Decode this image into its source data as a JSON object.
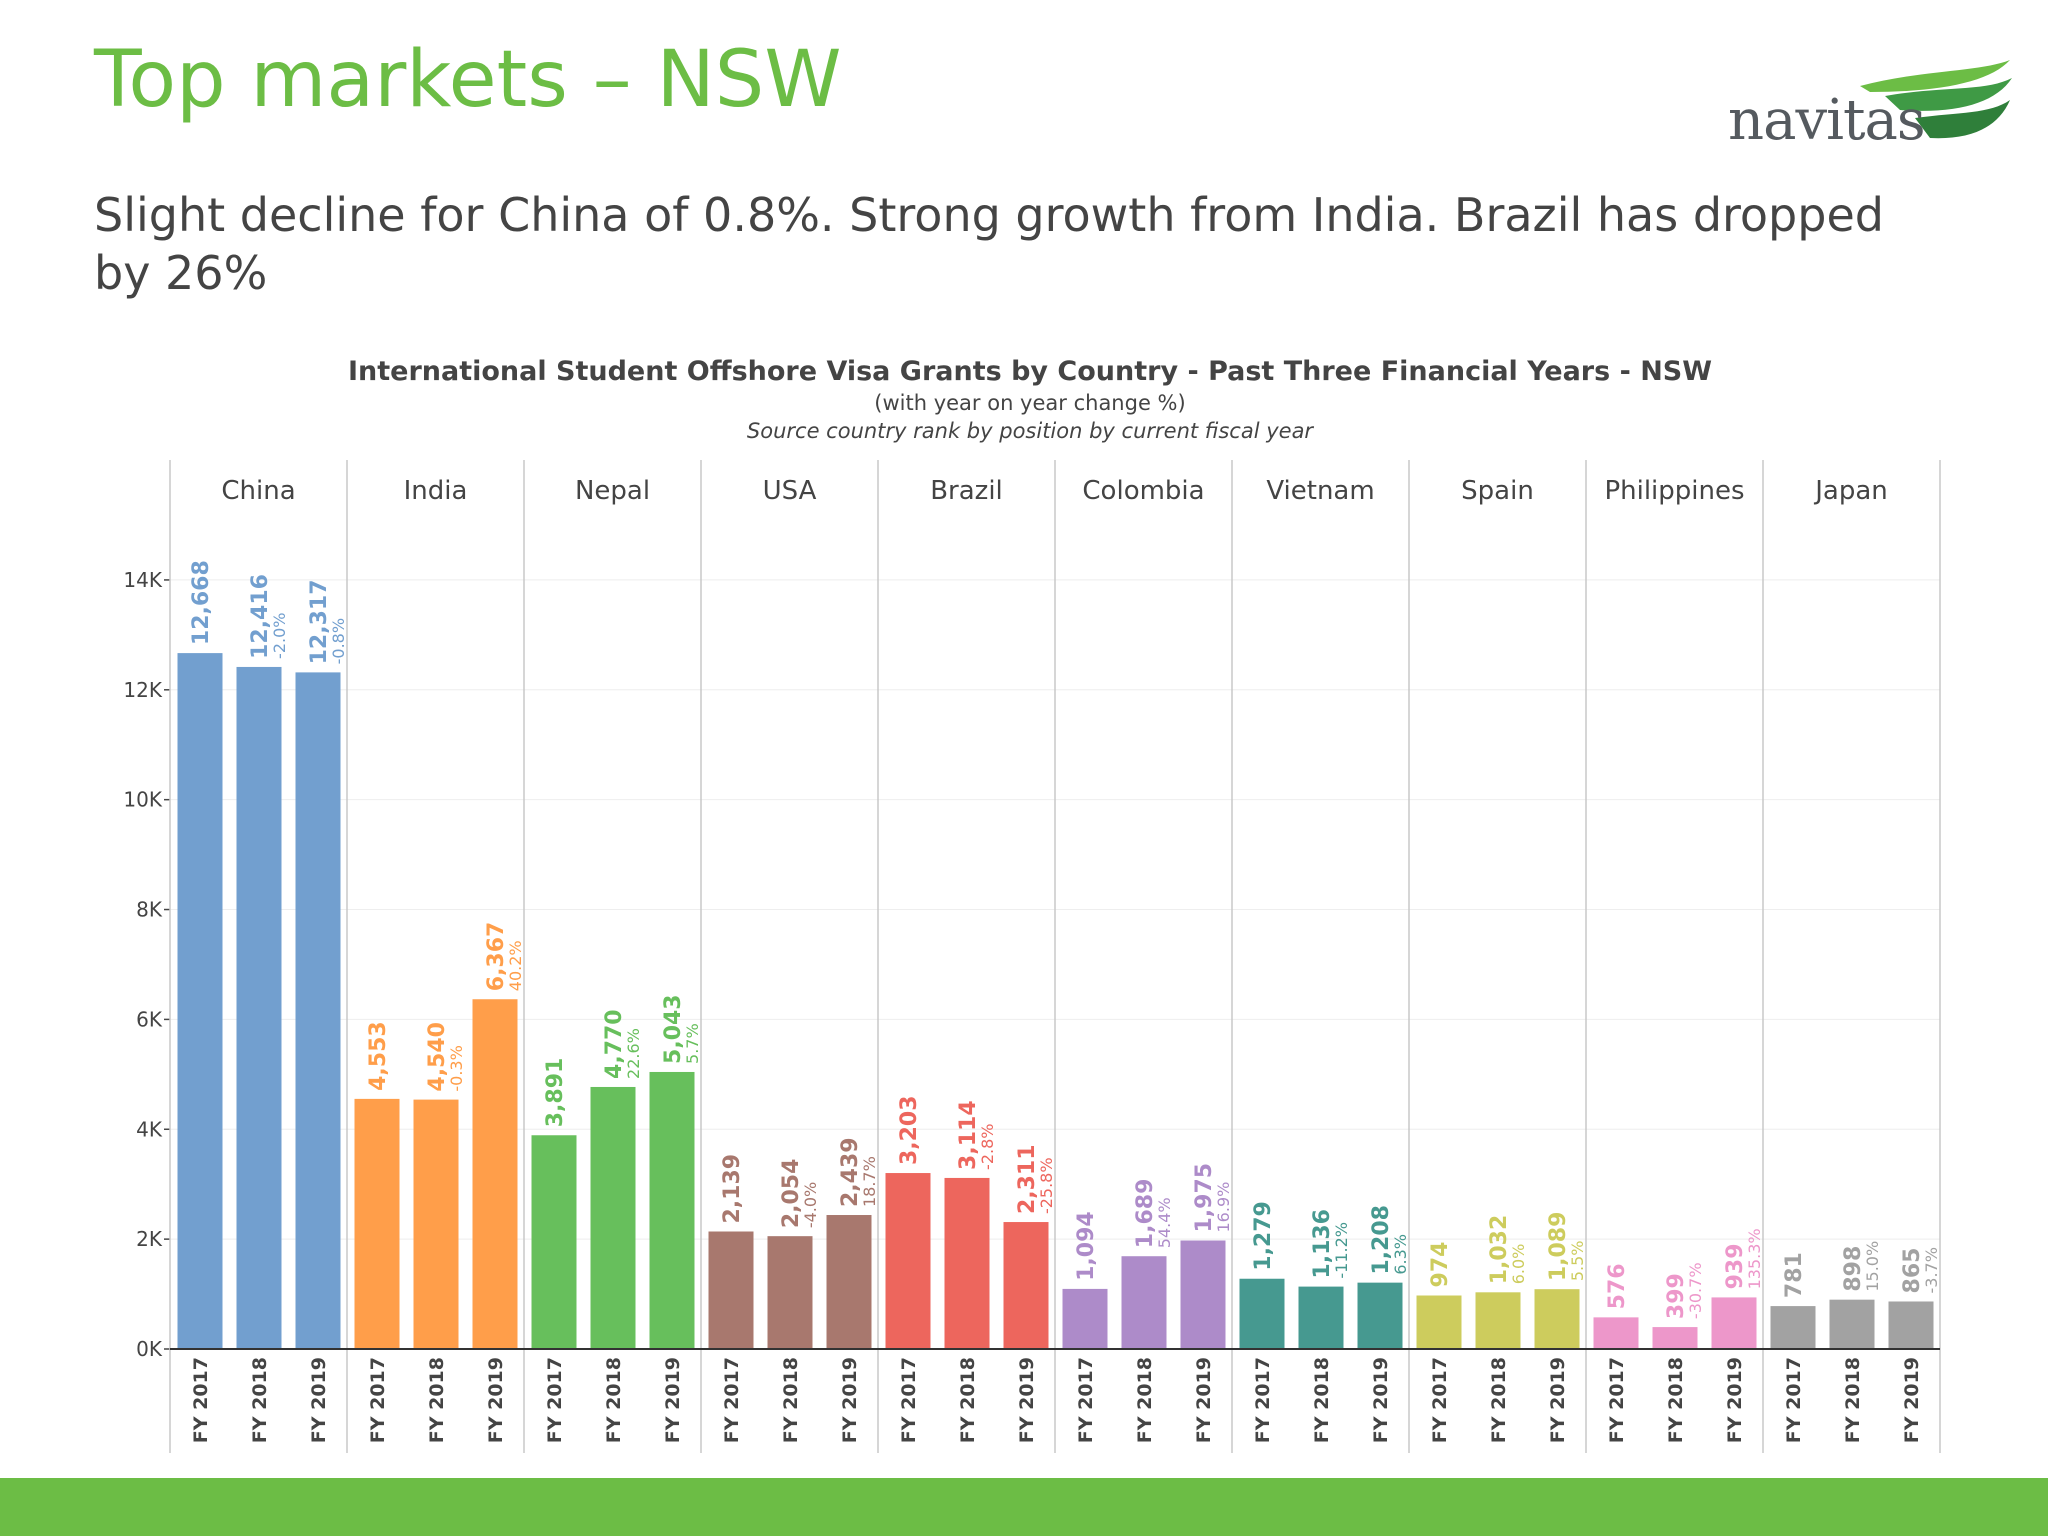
{
  "slide": {
    "title": "Top markets – NSW",
    "subtitle": "Slight decline for China of 0.8%. Strong growth from India. Brazil has dropped by 26%",
    "logo_text": "navitas",
    "accent_color": "#6cbd45"
  },
  "chart_data": {
    "type": "bar",
    "title": "International Student Offshore Visa Grants by Country - Past Three Financial Years - NSW",
    "subtitle": "(with year on year change %)",
    "note": "Source country rank by position by current fiscal year",
    "ylim": [
      0,
      15000
    ],
    "yticks": [
      {
        "value": 0,
        "label": "0K"
      },
      {
        "value": 2000,
        "label": "2K"
      },
      {
        "value": 4000,
        "label": "4K"
      },
      {
        "value": 6000,
        "label": "6K"
      },
      {
        "value": 8000,
        "label": "8K"
      },
      {
        "value": 10000,
        "label": "10K"
      },
      {
        "value": 12000,
        "label": "12K"
      },
      {
        "value": 14000,
        "label": "14K"
      }
    ],
    "years": [
      "FY 2017",
      "FY 2018",
      "FY 2019"
    ],
    "grid": true,
    "groups": [
      {
        "country": "China",
        "color": "#729fcf",
        "values": [
          12668,
          12416,
          12317
        ],
        "labels": [
          "12,668",
          "12,416",
          "12,317"
        ],
        "changes": [
          "",
          "-2.0%",
          "-0.8%"
        ]
      },
      {
        "country": "India",
        "color": "#ff9e4a",
        "values": [
          4553,
          4540,
          6367
        ],
        "labels": [
          "4,553",
          "4,540",
          "6,367"
        ],
        "changes": [
          "",
          "-0.3%",
          "40.2%"
        ]
      },
      {
        "country": "Nepal",
        "color": "#67bf5c",
        "values": [
          3891,
          4770,
          5043
        ],
        "labels": [
          "3,891",
          "4,770",
          "5,043"
        ],
        "changes": [
          "",
          "22.6%",
          "5.7%"
        ]
      },
      {
        "country": "USA",
        "color": "#a8786e",
        "values": [
          2139,
          2054,
          2439
        ],
        "labels": [
          "2,139",
          "2,054",
          "2,439"
        ],
        "changes": [
          "",
          "-4.0%",
          "18.7%"
        ]
      },
      {
        "country": "Brazil",
        "color": "#ed665d",
        "values": [
          3203,
          3114,
          2311
        ],
        "labels": [
          "3,203",
          "3,114",
          "2,311"
        ],
        "changes": [
          "",
          "-2.8%",
          "-25.8%"
        ]
      },
      {
        "country": "Colombia",
        "color": "#ad8bc9",
        "values": [
          1094,
          1689,
          1975
        ],
        "labels": [
          "1,094",
          "1,689",
          "1,975"
        ],
        "changes": [
          "",
          "54.4%",
          "16.9%"
        ]
      },
      {
        "country": "Vietnam",
        "color": "#469990",
        "values": [
          1279,
          1136,
          1208
        ],
        "labels": [
          "1,279",
          "1,136",
          "1,208"
        ],
        "changes": [
          "",
          "-11.2%",
          "6.3%"
        ]
      },
      {
        "country": "Spain",
        "color": "#cdcc5d",
        "values": [
          974,
          1032,
          1089
        ],
        "labels": [
          "974",
          "1,032",
          "1,089"
        ],
        "changes": [
          "",
          "6.0%",
          "5.5%"
        ]
      },
      {
        "country": "Philippines",
        "color": "#ed97ca",
        "values": [
          576,
          399,
          939
        ],
        "labels": [
          "576",
          "399",
          "939"
        ],
        "changes": [
          "",
          "-30.7%",
          "135.3%"
        ]
      },
      {
        "country": "Japan",
        "color": "#a2a2a2",
        "values": [
          781,
          898,
          865
        ],
        "labels": [
          "781",
          "898",
          "865"
        ],
        "changes": [
          "",
          "15.0%",
          "-3.7%"
        ]
      }
    ]
  }
}
